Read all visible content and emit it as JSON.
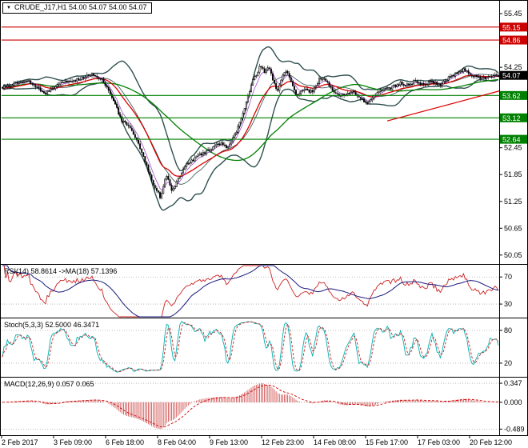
{
  "header": {
    "title": "CRUDE_J17,H1 54.00 54.07 54.00 54.07",
    "collapse_icon": "▼"
  },
  "indicator_labels": {
    "rsi": "RSI(14) 58.8614 ->MA(18) 57.1396",
    "stoch": "Stoch(5,3,3) 52.5000 46.3471",
    "macd": "MACD(12,26,9) 0.057 0.065"
  },
  "colors": {
    "background": "#ffffff",
    "frame": "#000000",
    "candle": "#000000",
    "bollinger": "#2f4f4f",
    "ma_red": "#dd0000",
    "ma_green": "#008000",
    "ma_violet": "#9933cc",
    "level_resistance": "#cc0000",
    "level_support": "#008000",
    "price_box": "#000000",
    "rsi_line": "#cc2222",
    "rsi_ma": "#1a1a80",
    "stoch_k": "#00b0b0",
    "stoch_d": "#cc2222",
    "macd_hist": "#cc4444",
    "macd_signal": "#cc0000",
    "grid_dash": "#aaaaaa"
  },
  "chart_data": {
    "type": "candlestick",
    "symbol": "CRUDE_J17",
    "timeframe": "H1",
    "x_labels": [
      "2 Feb 2017",
      "3 Feb 09:00",
      "6 Feb 18:00",
      "8 Feb 04:00",
      "9 Feb 13:00",
      "12 Feb 23:00",
      "14 Feb 08:00",
      "15 Feb 17:00",
      "17 Feb 03:00",
      "20 Feb 12:00"
    ],
    "main": {
      "y_range": [
        49.85,
        55.72
      ],
      "y_ticks": [
        55.45,
        54.25,
        52.45,
        51.85,
        51.25,
        50.65,
        50.05
      ],
      "levels": [
        {
          "value": 55.15,
          "label": "55.15",
          "type": "resistance"
        },
        {
          "value": 54.86,
          "label": "54.86",
          "type": "resistance"
        },
        {
          "value": 53.62,
          "label": "53.62",
          "type": "support"
        },
        {
          "value": 53.12,
          "label": "53.12",
          "type": "support"
        },
        {
          "value": 52.64,
          "label": "52.64",
          "type": "support"
        }
      ],
      "current_price": {
        "value": 54.07,
        "label": "54.07"
      },
      "trendline": {
        "from": [
          0.775,
          53.05
        ],
        "to": [
          1.0,
          53.72
        ]
      },
      "bars": 300,
      "price_anchors": [
        [
          0,
          53.8
        ],
        [
          0.053,
          53.95
        ],
        [
          0.085,
          53.65
        ],
        [
          0.117,
          53.9
        ],
        [
          0.158,
          54.0
        ],
        [
          0.182,
          54.1
        ],
        [
          0.203,
          53.95
        ],
        [
          0.222,
          53.55
        ],
        [
          0.241,
          53.05
        ],
        [
          0.257,
          52.9
        ],
        [
          0.273,
          52.6
        ],
        [
          0.289,
          52.1
        ],
        [
          0.305,
          51.6
        ],
        [
          0.318,
          51.35
        ],
        [
          0.331,
          51.85
        ],
        [
          0.342,
          51.45
        ],
        [
          0.354,
          51.75
        ],
        [
          0.37,
          52.05
        ],
        [
          0.391,
          52.25
        ],
        [
          0.416,
          52.4
        ],
        [
          0.439,
          52.55
        ],
        [
          0.455,
          52.45
        ],
        [
          0.471,
          52.8
        ],
        [
          0.487,
          53.3
        ],
        [
          0.503,
          53.9
        ],
        [
          0.519,
          54.25
        ],
        [
          0.529,
          54.15
        ],
        [
          0.537,
          54.3
        ],
        [
          0.545,
          53.95
        ],
        [
          0.555,
          53.7
        ],
        [
          0.563,
          54.0
        ],
        [
          0.571,
          54.2
        ],
        [
          0.584,
          53.85
        ],
        [
          0.595,
          53.6
        ],
        [
          0.608,
          53.75
        ],
        [
          0.624,
          53.7
        ],
        [
          0.64,
          54.0
        ],
        [
          0.653,
          53.95
        ],
        [
          0.666,
          53.75
        ],
        [
          0.68,
          53.6
        ],
        [
          0.693,
          53.65
        ],
        [
          0.709,
          53.7
        ],
        [
          0.723,
          53.55
        ],
        [
          0.736,
          53.45
        ],
        [
          0.749,
          53.6
        ],
        [
          0.765,
          53.75
        ],
        [
          0.785,
          53.8
        ],
        [
          0.801,
          53.9
        ],
        [
          0.817,
          53.85
        ],
        [
          0.833,
          53.95
        ],
        [
          0.849,
          53.85
        ],
        [
          0.865,
          53.95
        ],
        [
          0.881,
          53.85
        ],
        [
          0.897,
          54.0
        ],
        [
          0.913,
          54.1
        ],
        [
          0.929,
          54.2
        ],
        [
          0.942,
          54.1
        ],
        [
          0.955,
          54.05
        ],
        [
          0.968,
          54.0
        ],
        [
          0.981,
          54.05
        ],
        [
          1,
          54.07
        ]
      ]
    },
    "rsi": {
      "period": 14,
      "ma_period": 18,
      "ticks": [
        70,
        30
      ],
      "range": [
        10,
        88
      ]
    },
    "stoch": {
      "k": 5,
      "d": 3,
      "slowing": 3,
      "ticks": [
        80,
        20
      ],
      "range": [
        -5,
        102
      ]
    },
    "macd": {
      "fast": 12,
      "slow": 26,
      "signal": 9,
      "range": [
        -0.6,
        0.45
      ],
      "hist_max": 0.347,
      "hist_min": -0.489,
      "ticks": [
        {
          "value": 0.347,
          "label": "0.347"
        },
        {
          "value": 0.0,
          "label": "0.000"
        },
        {
          "value": -0.489,
          "label": "-0.489"
        }
      ]
    }
  }
}
